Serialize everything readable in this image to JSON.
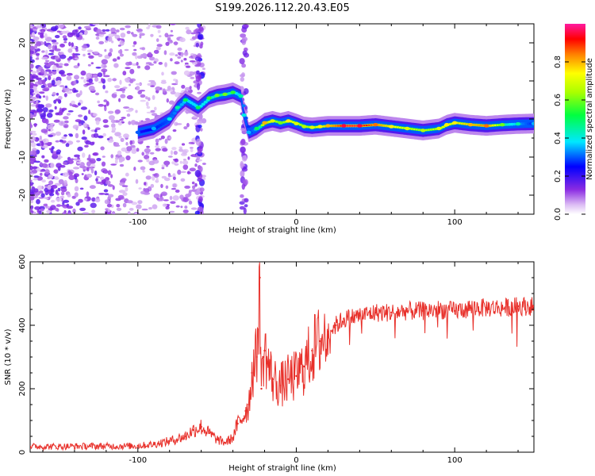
{
  "title": "S199.2026.112.20.43.E05",
  "chart_data": [
    {
      "type": "heatmap",
      "title": "S199.2026.112.20.43.E05",
      "xlabel": "Height of straight line (km)",
      "ylabel": "Frequency (Hz)",
      "xlim": [
        -168,
        150
      ],
      "ylim": [
        -25,
        25
      ],
      "xticks": [
        -100,
        0,
        100
      ],
      "yticks": [
        -20,
        -10,
        0,
        10,
        20
      ],
      "tick_labels_x": [
        "-100",
        "0",
        "100"
      ],
      "tick_labels_y": [
        "-20",
        "-10",
        "0",
        "10",
        "20"
      ],
      "colorbar": {
        "label": "Normalized spectral amplitude",
        "range": [
          0,
          1
        ],
        "ticks": [
          0.0,
          0.2,
          0.4,
          0.6,
          0.8
        ],
        "tick_labels": [
          "0.0",
          "0.2",
          "0.4",
          "0.6",
          "0.8"
        ]
      },
      "ridge": {
        "x": [
          -100,
          -90,
          -80,
          -75,
          -70,
          -62,
          -55,
          -50,
          -45,
          -40,
          -35,
          -33,
          -30,
          -25,
          -20,
          -15,
          -10,
          -5,
          0,
          5,
          10,
          15,
          20,
          30,
          40,
          50,
          60,
          70,
          80,
          90,
          95,
          100,
          110,
          120,
          130,
          140,
          150
        ],
        "y": [
          -3.5,
          -2.5,
          0,
          3,
          5,
          3,
          5.5,
          6.2,
          6.5,
          7,
          6,
          1,
          -3.5,
          -2.5,
          -1,
          -0.5,
          -1,
          -0.5,
          -1.2,
          -2,
          -2.2,
          -2,
          -1.8,
          -1.8,
          -1.8,
          -1.5,
          -2,
          -2.5,
          -3,
          -2.5,
          -1.5,
          -1,
          -1.5,
          -1.8,
          -1.5,
          -1.3,
          -1.2
        ],
        "amplitude": [
          0.3,
          0.35,
          0.4,
          0.45,
          0.5,
          0.5,
          0.55,
          0.6,
          0.6,
          0.55,
          0.45,
          0.4,
          0.35,
          0.5,
          0.8,
          0.7,
          0.6,
          0.75,
          0.7,
          0.65,
          0.7,
          0.75,
          0.8,
          0.95,
          0.95,
          0.85,
          0.75,
          0.7,
          0.65,
          0.7,
          0.75,
          0.75,
          0.8,
          0.85,
          0.6,
          0.45,
          0.35
        ]
      }
    },
    {
      "type": "line",
      "xlabel": "Height of straight line (km)",
      "ylabel": "SNR (10 * v/v)",
      "xlim": [
        -168,
        150
      ],
      "ylim": [
        0,
        600
      ],
      "xticks": [
        -100,
        0,
        100
      ],
      "yticks": [
        0,
        200,
        400,
        600
      ],
      "tick_labels_x": [
        "-100",
        "0",
        "100"
      ],
      "tick_labels_y": [
        "0",
        "200",
        "400",
        "600"
      ],
      "series": [
        {
          "name": "SNR",
          "color": "#e8302a",
          "x": [
            -168,
            -150,
            -130,
            -110,
            -100,
            -90,
            -80,
            -70,
            -65,
            -60,
            -55,
            -50,
            -45,
            -40,
            -37,
            -35,
            -32,
            -30,
            -28,
            -25,
            -23,
            -22,
            -21,
            -20,
            -18,
            -15,
            -10,
            -5,
            0,
            5,
            10,
            15,
            20,
            25,
            30,
            40,
            50,
            60,
            70,
            80,
            90,
            100,
            110,
            120,
            130,
            140,
            150
          ],
          "y": [
            18,
            18,
            19,
            19,
            20,
            25,
            35,
            50,
            70,
            80,
            60,
            40,
            30,
            45,
            90,
            100,
            130,
            150,
            250,
            300,
            550,
            200,
            300,
            320,
            280,
            230,
            210,
            230,
            240,
            270,
            320,
            350,
            380,
            400,
            420,
            430,
            440,
            440,
            445,
            445,
            450,
            445,
            455,
            455,
            455,
            460,
            460
          ]
        }
      ]
    }
  ]
}
